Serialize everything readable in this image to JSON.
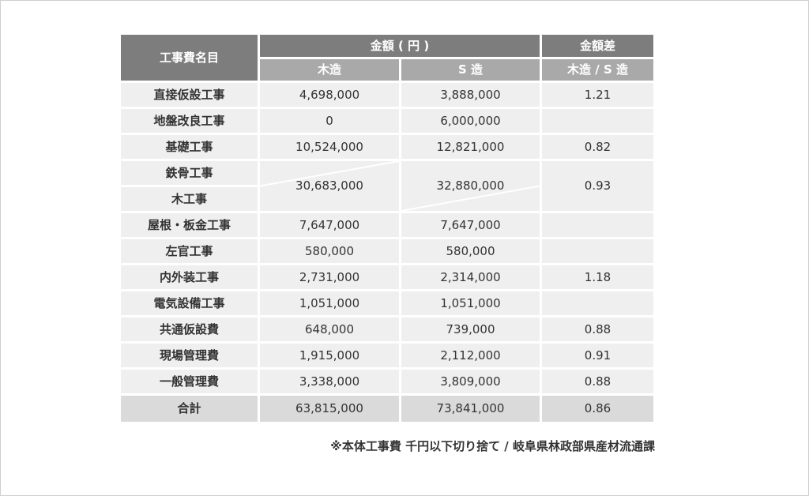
{
  "header": {
    "item_name": "工事費名目",
    "amount_group": "金額 ( 円 )",
    "diff_group": "金額差",
    "wood": "木造",
    "steel": "S 造",
    "ratio": "木造 / S 造"
  },
  "rows": [
    {
      "name": "直接仮設工事",
      "wood": "4,698,000",
      "steel": "3,888,000",
      "ratio": "1.21"
    },
    {
      "name": "地盤改良工事",
      "wood": "0",
      "steel": "6,000,000",
      "ratio": ""
    },
    {
      "name": "基礎工事",
      "wood": "10,524,000",
      "steel": "12,821,000",
      "ratio": "0.82"
    },
    {
      "name": "鉄骨工事",
      "wood": "",
      "steel": "32,880,000",
      "ratio": "0.93"
    },
    {
      "name": "木工事",
      "wood": "30,683,000",
      "steel": "",
      "ratio": ""
    },
    {
      "name": "屋根・板金工事",
      "wood": "7,647,000",
      "steel": "7,647,000",
      "ratio": ""
    },
    {
      "name": "左官工事",
      "wood": "580,000",
      "steel": "580,000",
      "ratio": ""
    },
    {
      "name": "内外装工事",
      "wood": "2,731,000",
      "steel": "2,314,000",
      "ratio": "1.18"
    },
    {
      "name": "電気設備工事",
      "wood": "1,051,000",
      "steel": "1,051,000",
      "ratio": ""
    },
    {
      "name": "共通仮設費",
      "wood": "648,000",
      "steel": "739,000",
      "ratio": "0.88"
    },
    {
      "name": "現場管理費",
      "wood": "1,915,000",
      "steel": "2,112,000",
      "ratio": "0.91"
    },
    {
      "name": "一般管理費",
      "wood": "3,338,000",
      "steel": "3,809,000",
      "ratio": "0.88"
    }
  ],
  "total": {
    "name": "合計",
    "wood": "63,815,000",
    "steel": "73,841,000",
    "ratio": "0.86"
  },
  "note": "※本体工事費 千円以下切り捨て / 岐阜県林政部県産材流通課",
  "colors": {
    "header_dark": "#7d7d7d",
    "header_light": "#a9a9a9",
    "cell": "#efefef",
    "total_row": "#dadada"
  }
}
